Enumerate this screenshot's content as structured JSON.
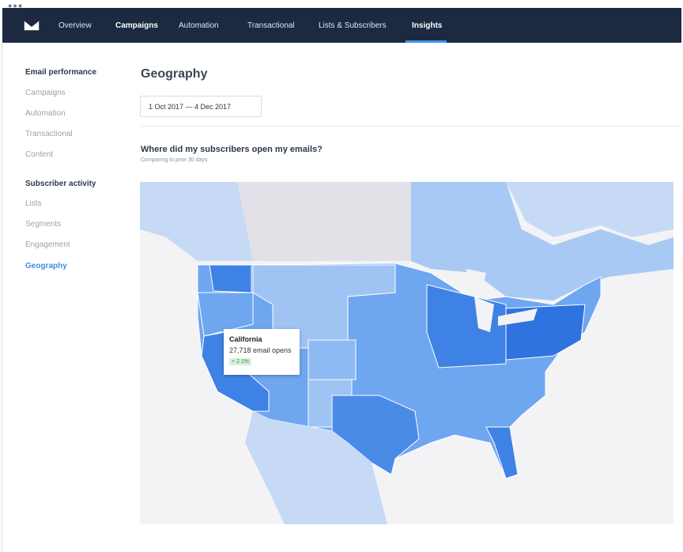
{
  "nav": {
    "items": [
      "Overview",
      "Campaigns",
      "Automation",
      "Transactional",
      "Lists & Subscribers",
      "Insights"
    ]
  },
  "sidebar": {
    "sections": [
      {
        "heading": "Email performance",
        "items": [
          "Campaigns",
          "Automation",
          "Transactional",
          "Content"
        ]
      },
      {
        "heading": "Subscriber activity",
        "items": [
          "Lists",
          "Segments",
          "Engagement",
          "Geography"
        ]
      }
    ]
  },
  "main": {
    "title": "Geography",
    "date_range": "1 Oct 2017 — 4 Dec 2017",
    "question": "Where did my subscribers open my emails?",
    "subtitle": "Comparing to prior 30 days"
  },
  "tooltip": {
    "state": "California",
    "opens": "27,718 email opens",
    "change": "+ 2.1%"
  }
}
